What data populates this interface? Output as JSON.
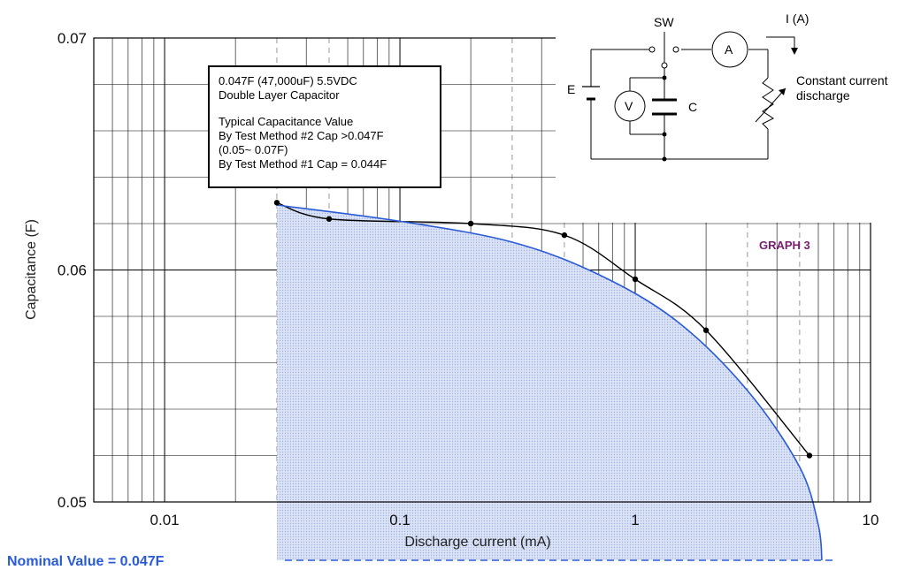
{
  "chart_data": {
    "type": "line",
    "title": "",
    "xlabel": "Discharge current (mA)",
    "ylabel": "Capacitance (F)",
    "xscale": "log",
    "xlim": [
      0.005,
      10
    ],
    "ylim": [
      0.05,
      0.07
    ],
    "xticks": [
      {
        "value": 0.01,
        "label": "0.01"
      },
      {
        "value": 0.1,
        "label": "0.1"
      },
      {
        "value": 1,
        "label": "1"
      },
      {
        "value": 10,
        "label": "10"
      }
    ],
    "yticks": [
      {
        "value": 0.05,
        "label": "0.05"
      },
      {
        "value": 0.06,
        "label": "0.06"
      },
      {
        "value": 0.07,
        "label": "0.07"
      }
    ],
    "grid": true,
    "series": [
      {
        "name": "",
        "style": "points-with-black-curve",
        "color": "#000000",
        "points": [
          {
            "x": 0.03,
            "y": 0.0629
          },
          {
            "x": 0.05,
            "y": 0.0622
          },
          {
            "x": 0.2,
            "y": 0.062
          },
          {
            "x": 0.5,
            "y": 0.0615
          },
          {
            "x": 1.0,
            "y": 0.0596
          },
          {
            "x": 2.0,
            "y": 0.0574
          },
          {
            "x": 5.5,
            "y": 0.052
          }
        ]
      },
      {
        "name": "",
        "style": "blue-curve-shaded-area",
        "color": "#2a5bd7",
        "fill": "#cfd9f2",
        "points": [
          {
            "x": 0.03,
            "y": 0.0628
          },
          {
            "x": 0.1,
            "y": 0.0621
          },
          {
            "x": 0.3,
            "y": 0.0612
          },
          {
            "x": 0.7,
            "y": 0.0598
          },
          {
            "x": 1.5,
            "y": 0.0578
          },
          {
            "x": 3.0,
            "y": 0.0548
          },
          {
            "x": 5.0,
            "y": 0.0515
          },
          {
            "x": 6.0,
            "y": 0.049
          }
        ]
      }
    ],
    "annotations": {
      "graph_label": "GRAPH 3",
      "nominal": "Nominal Value = 0.047F",
      "info_box": [
        "0.047F (47,000uF) 5.5VDC",
        "Double Layer Capacitor",
        "",
        "Typical Capacitance Value",
        "By Test Method #2 Cap >0.047F",
        "(0.05~ 0.07F)",
        "By Test Method #1 Cap = 0.044F"
      ]
    }
  },
  "circuit": {
    "sw": "SW",
    "current": "I (A)",
    "ammeter": "A",
    "voltmeter": "V",
    "battery": "E",
    "capacitor": "C",
    "load_line1": "Constant current",
    "load_line2": "discharge"
  },
  "colors": {
    "blue": "#2a5bd7",
    "shade": "#cfd9f2",
    "graph_label": "#7a1f6e"
  }
}
